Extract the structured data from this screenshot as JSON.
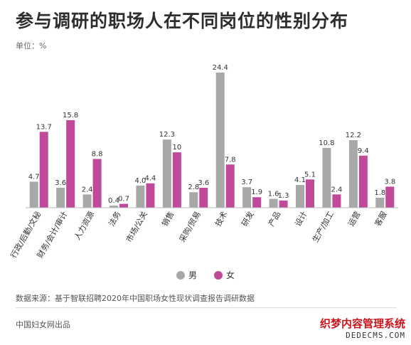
{
  "header": {
    "title": "参与调研的职场人在不同岗位的性别分布",
    "unit": "单位：%"
  },
  "colors": {
    "male": "#a8a8a8",
    "female": "#c0499a"
  },
  "legend": {
    "male": "男",
    "female": "女"
  },
  "footer": {
    "source": "数据来源：基于智联招聘2020年中国职场女性现状调查报告调研数据",
    "publisher": "中国妇女网出品"
  },
  "watermark": {
    "line1": "织梦内容管理系统",
    "line2": "DEDECMS.COM"
  },
  "chart_data": {
    "type": "bar",
    "title": "参与调研的职场人在不同岗位的性别分布",
    "ylabel": "单位：%",
    "ylim": [
      0,
      25
    ],
    "grid": false,
    "legend_position": "bottom",
    "categories": [
      "行政/后勤/文秘",
      "财务/会计/审计",
      "人力资源",
      "法务",
      "市场/公关",
      "销售",
      "采购/贸易",
      "技术",
      "研发",
      "产品",
      "设计",
      "生产/加工",
      "运营",
      "客服"
    ],
    "series": [
      {
        "name": "男",
        "color": "#a8a8a8",
        "values": [
          4.7,
          3.6,
          2.4,
          0.4,
          4.0,
          12.3,
          2.8,
          24.4,
          3.7,
          1.6,
          4.1,
          10.8,
          12.2,
          1.8
        ]
      },
      {
        "name": "女",
        "color": "#c0499a",
        "values": [
          13.7,
          15.8,
          8.8,
          0.7,
          4.4,
          10,
          3.6,
          7.8,
          1.9,
          1.3,
          5.1,
          2.4,
          9.4,
          3.8
        ]
      }
    ],
    "value_labels": {
      "male": [
        "4.7",
        "3.6",
        "2.4",
        "0.4",
        "4.0",
        "12.3",
        "2.8",
        "24.4",
        "3.7",
        "1.6",
        "4.1",
        "10.8",
        "12.2",
        "1.8"
      ],
      "female": [
        "13.7",
        "15.8",
        "8.8",
        "0.7",
        "4.4",
        "10",
        "3.6",
        "7.8",
        "1.9",
        "1.3",
        "5.1",
        "2.4",
        "9.4",
        "3.8"
      ]
    }
  }
}
